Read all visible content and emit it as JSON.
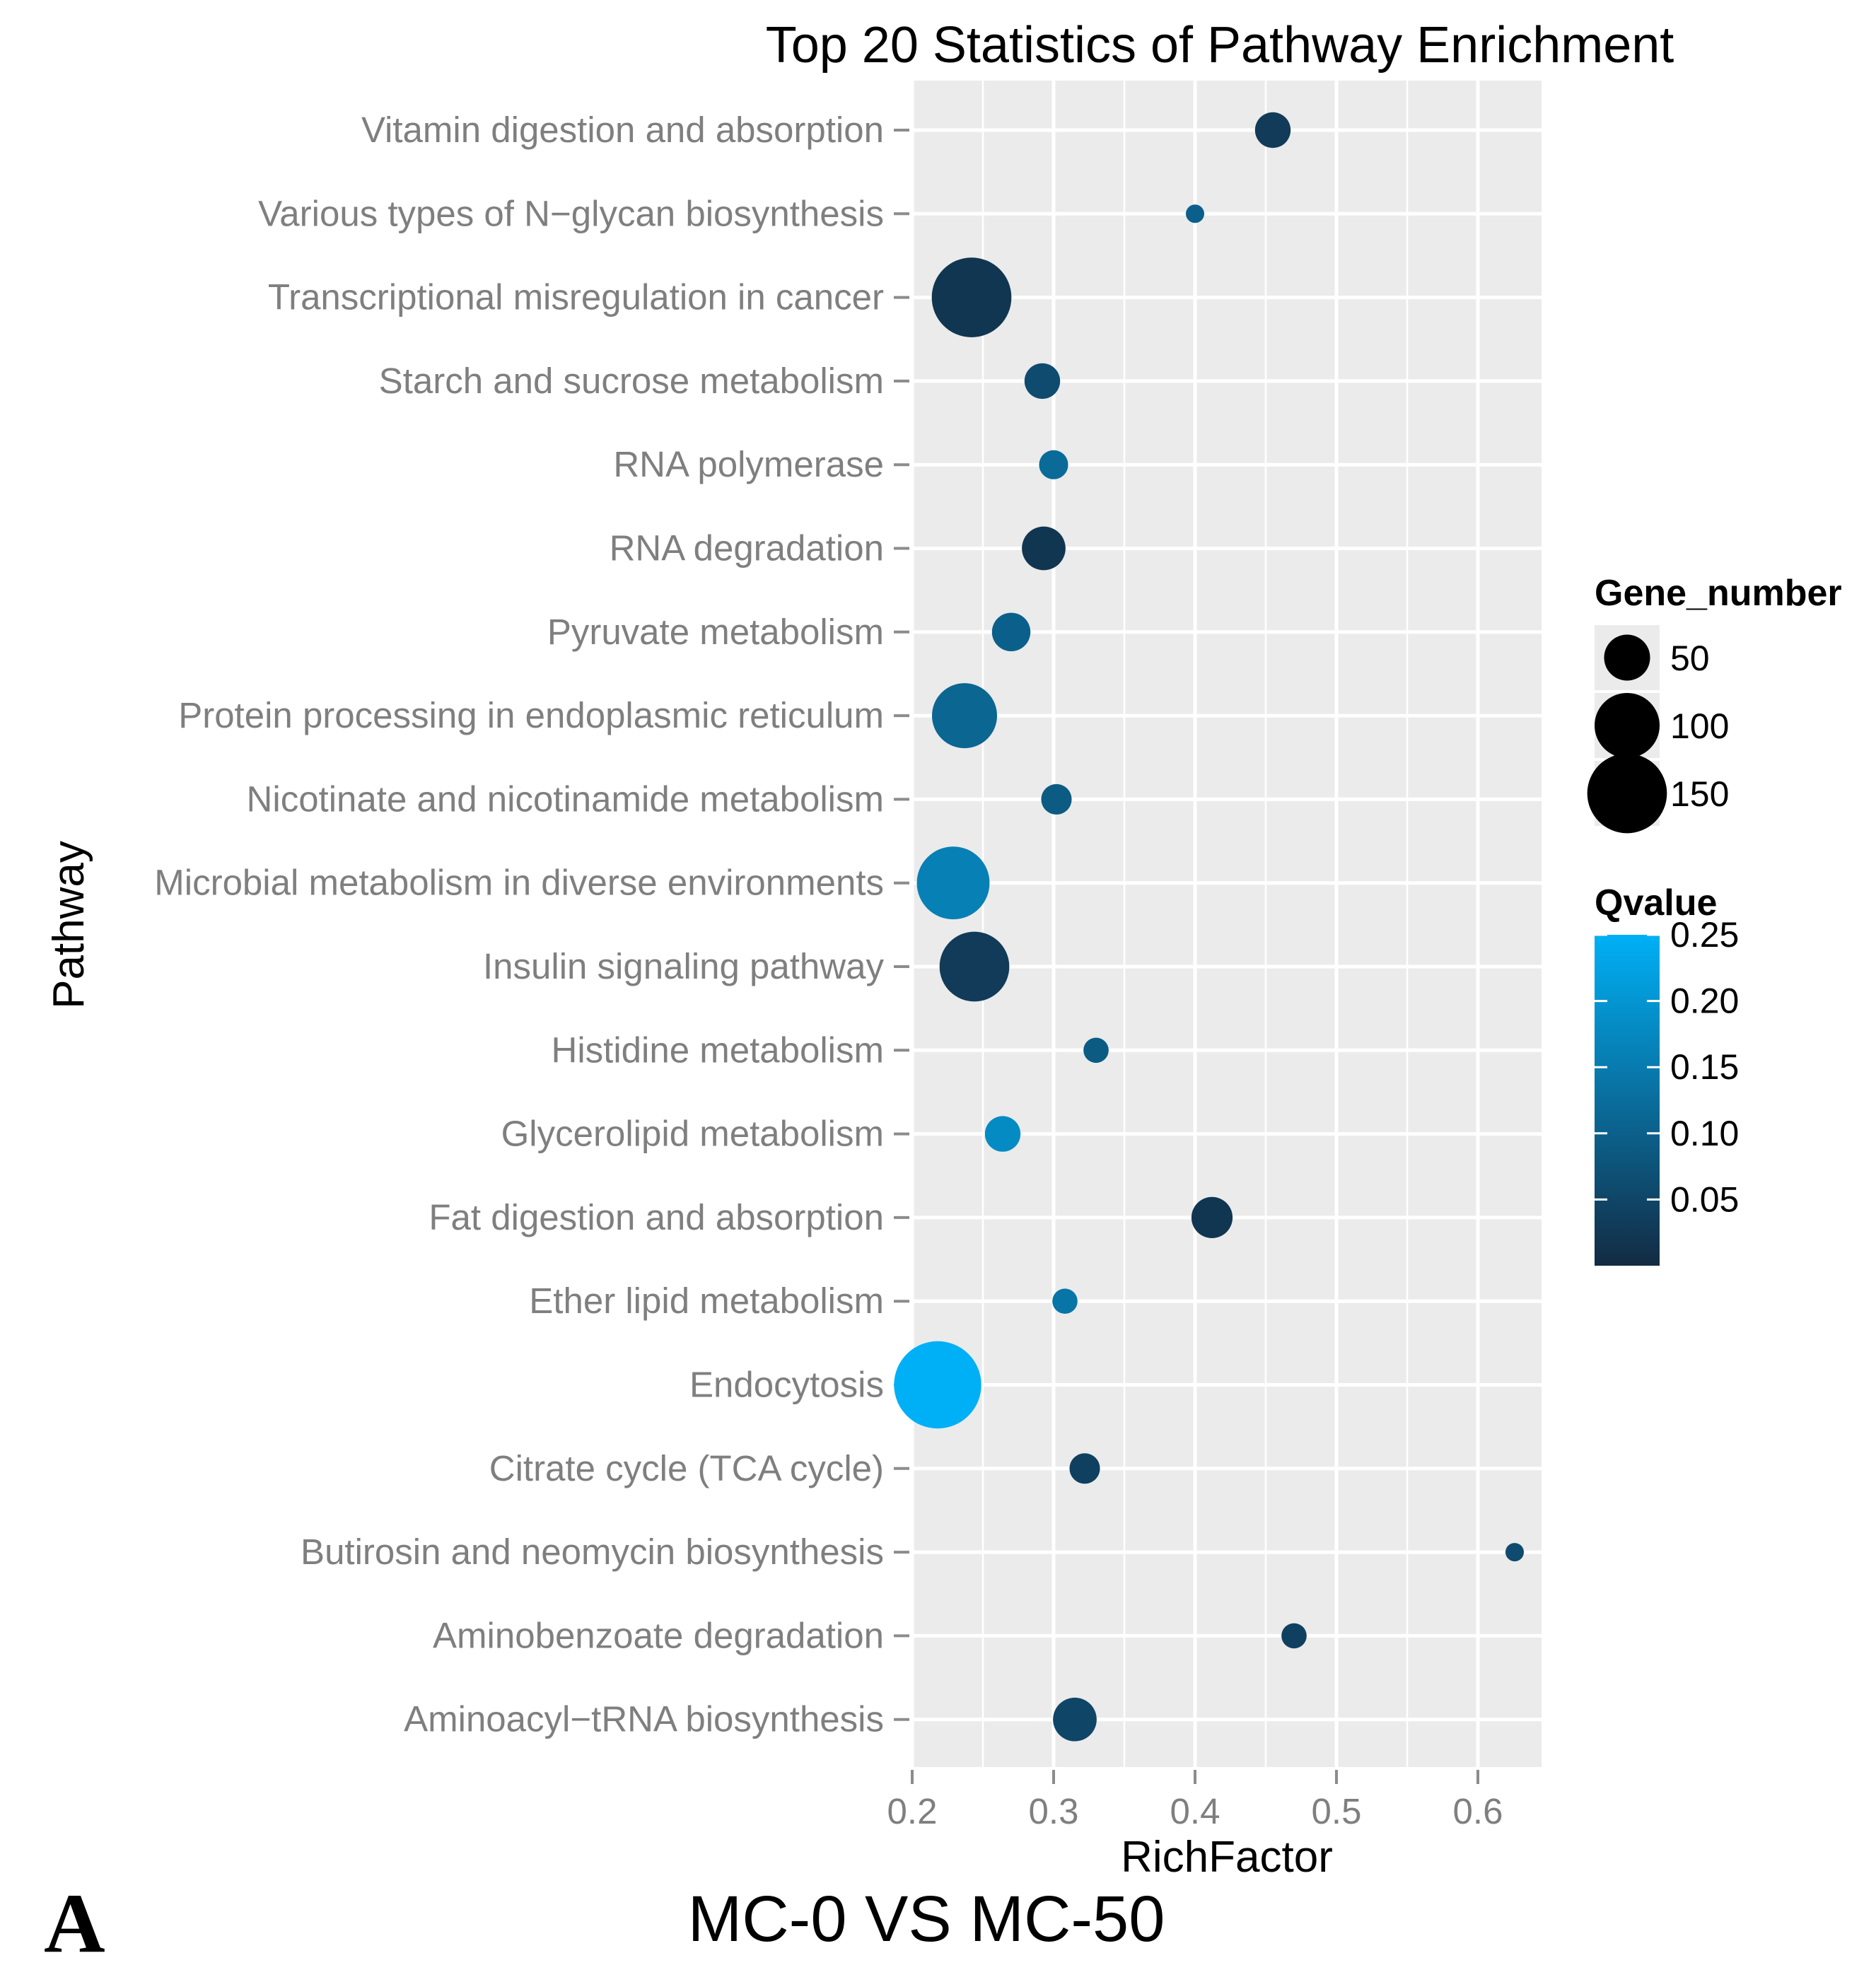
{
  "chart_data": {
    "type": "scatter",
    "title": "Top 20 Statistics of Pathway Enrichment",
    "xlabel": "RichFactor",
    "ylabel": "Pathway",
    "xlim": [
      0.2,
      0.645
    ],
    "x_ticks": [
      0.2,
      0.3,
      0.4,
      0.5,
      0.6
    ],
    "x_tick_labels": [
      "0.2",
      "0.3",
      "0.4",
      "0.5",
      "0.6"
    ],
    "grid": true,
    "points": [
      {
        "pathway": "Vitamin digestion and absorption",
        "rich_factor": 0.455,
        "gene_number": 30,
        "qvalue": 0.03
      },
      {
        "pathway": "Various types of N−glycan biosynthesis",
        "rich_factor": 0.4,
        "gene_number": 8,
        "qvalue": 0.1
      },
      {
        "pathway": "Transcriptional misregulation in cancer",
        "rich_factor": 0.242,
        "gene_number": 150,
        "qvalue": 0.02
      },
      {
        "pathway": "Starch and sucrose metabolism",
        "rich_factor": 0.292,
        "gene_number": 30,
        "qvalue": 0.06
      },
      {
        "pathway": "RNA polymerase",
        "rich_factor": 0.3,
        "gene_number": 20,
        "qvalue": 0.12
      },
      {
        "pathway": "RNA degradation",
        "rich_factor": 0.293,
        "gene_number": 45,
        "qvalue": 0.02
      },
      {
        "pathway": "Pyruvate metabolism",
        "rich_factor": 0.27,
        "gene_number": 35,
        "qvalue": 0.1
      },
      {
        "pathway": "Protein processing in endoplasmic reticulum",
        "rich_factor": 0.237,
        "gene_number": 100,
        "qvalue": 0.11
      },
      {
        "pathway": "Nicotinate and nicotinamide metabolism",
        "rich_factor": 0.302,
        "gene_number": 22,
        "qvalue": 0.09
      },
      {
        "pathway": "Microbial metabolism in diverse environments",
        "rich_factor": 0.229,
        "gene_number": 125,
        "qvalue": 0.16
      },
      {
        "pathway": "Insulin signaling pathway",
        "rich_factor": 0.244,
        "gene_number": 115,
        "qvalue": 0.03
      },
      {
        "pathway": "Histidine metabolism",
        "rich_factor": 0.33,
        "gene_number": 15,
        "qvalue": 0.09
      },
      {
        "pathway": "Glycerolipid metabolism",
        "rich_factor": 0.264,
        "gene_number": 30,
        "qvalue": 0.18
      },
      {
        "pathway": "Fat digestion and absorption",
        "rich_factor": 0.412,
        "gene_number": 40,
        "qvalue": 0.02
      },
      {
        "pathway": "Ether lipid metabolism",
        "rich_factor": 0.308,
        "gene_number": 15,
        "qvalue": 0.14
      },
      {
        "pathway": "Endocytosis",
        "rich_factor": 0.218,
        "gene_number": 180,
        "qvalue": 0.25
      },
      {
        "pathway": "Citrate cycle (TCA cycle)",
        "rich_factor": 0.322,
        "gene_number": 22,
        "qvalue": 0.04
      },
      {
        "pathway": "Butirosin and neomycin biosynthesis",
        "rich_factor": 0.626,
        "gene_number": 8,
        "qvalue": 0.06
      },
      {
        "pathway": "Aminobenzoate degradation",
        "rich_factor": 0.47,
        "gene_number": 15,
        "qvalue": 0.04
      },
      {
        "pathway": "Aminoacyl−tRNA biosynthesis",
        "rich_factor": 0.315,
        "gene_number": 45,
        "qvalue": 0.05
      }
    ],
    "legend_size": {
      "title": "Gene_number",
      "entries": [
        {
          "label": "50",
          "value": 50
        },
        {
          "label": "100",
          "value": 100
        },
        {
          "label": "150",
          "value": 150
        }
      ]
    },
    "legend_color": {
      "title": "Qvalue",
      "range": [
        0.0,
        0.25
      ],
      "color_low": "#132B43",
      "color_high": "#00B0F6",
      "ticks": [
        {
          "label": "0.25",
          "value": 0.25
        },
        {
          "label": "0.20",
          "value": 0.2
        },
        {
          "label": "0.15",
          "value": 0.15
        },
        {
          "label": "0.10",
          "value": 0.1
        },
        {
          "label": "0.05",
          "value": 0.05
        }
      ]
    }
  },
  "caption": {
    "panel_letter": "A",
    "comparison": "MC-0 VS MC-50"
  },
  "colors": {
    "panel_bg": "#EBEBEB",
    "grid": "#FFFFFF",
    "axis_text": "#7F7F7F",
    "tick": "#8C8C8C"
  }
}
